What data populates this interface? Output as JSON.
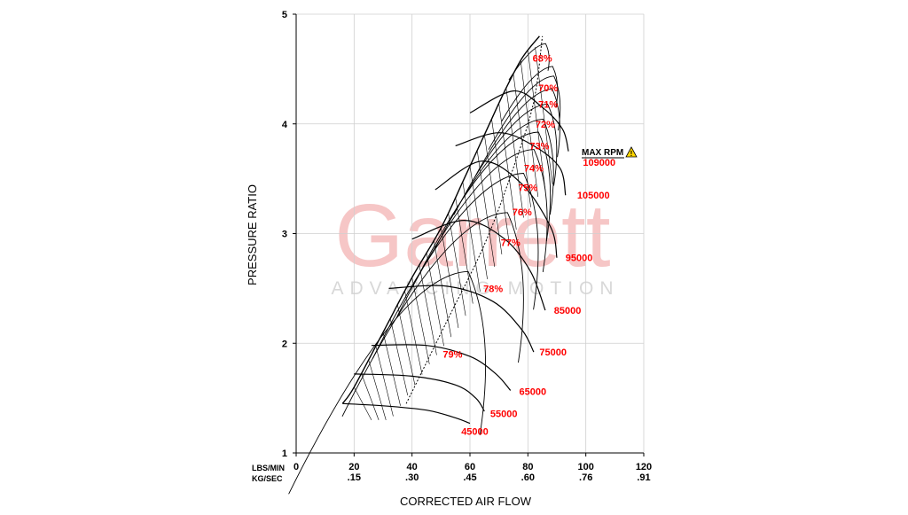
{
  "watermark": {
    "brand": "Garrett",
    "tagline": "ADVANCING MOTION"
  },
  "colors": {
    "grid": "#cfcfcf",
    "lines": "#000000",
    "labels": "#ff0000",
    "watermark": "#f6c6c6",
    "warning": "#ffd700"
  },
  "chart_data": {
    "type": "line",
    "title": "",
    "xlabel": "CORRECTED AIR FLOW",
    "ylabel": "PRESSURE RATIO",
    "xlim": [
      0,
      120
    ],
    "ylim": [
      1,
      5
    ],
    "grid": true,
    "x_unit_primary": "LBS/MIN",
    "x_unit_secondary": "KG/SEC",
    "x_ticks": [
      {
        "v": 0,
        "primary": "0",
        "secondary": ""
      },
      {
        "v": 20,
        "primary": "20",
        "secondary": ".15"
      },
      {
        "v": 40,
        "primary": "40",
        "secondary": ".30"
      },
      {
        "v": 60,
        "primary": "60",
        "secondary": ".45"
      },
      {
        "v": 80,
        "primary": "80",
        "secondary": ".60"
      },
      {
        "v": 100,
        "primary": "100",
        "secondary": ".76"
      },
      {
        "v": 120,
        "primary": "120",
        "secondary": ".91"
      }
    ],
    "y_ticks": [
      "1",
      "2",
      "3",
      "4",
      "5"
    ],
    "surge_line": [
      [
        16,
        1.45
      ],
      [
        20,
        1.6
      ],
      [
        30,
        2.1
      ],
      [
        40,
        2.6
      ],
      [
        50,
        3.05
      ],
      [
        58,
        3.5
      ],
      [
        65,
        3.9
      ],
      [
        72,
        4.3
      ],
      [
        78,
        4.6
      ],
      [
        84,
        4.8
      ]
    ],
    "speed_lines": [
      {
        "label": "45000",
        "points": [
          [
            16,
            1.45
          ],
          [
            30,
            1.43
          ],
          [
            45,
            1.39
          ],
          [
            55,
            1.32
          ],
          [
            60,
            1.27
          ]
        ],
        "label_at": [
          57,
          1.2
        ]
      },
      {
        "label": "55000",
        "points": [
          [
            20,
            1.72
          ],
          [
            40,
            1.7
          ],
          [
            55,
            1.62
          ],
          [
            62,
            1.5
          ],
          [
            65,
            1.38
          ]
        ],
        "label_at": [
          67,
          1.36
        ]
      },
      {
        "label": "65000",
        "points": [
          [
            26,
            1.98
          ],
          [
            45,
            1.98
          ],
          [
            60,
            1.88
          ],
          [
            69,
            1.72
          ],
          [
            74,
            1.57
          ]
        ],
        "label_at": [
          77,
          1.56
        ]
      },
      {
        "label": "75000",
        "points": [
          [
            32,
            2.5
          ],
          [
            52,
            2.52
          ],
          [
            68,
            2.38
          ],
          [
            78,
            2.12
          ],
          [
            82,
            1.92
          ]
        ],
        "label_at": [
          84,
          1.92
        ]
      },
      {
        "label": "85000",
        "points": [
          [
            40,
            2.95
          ],
          [
            58,
            3.12
          ],
          [
            72,
            2.95
          ],
          [
            81,
            2.65
          ],
          [
            86,
            2.3
          ]
        ],
        "label_at": [
          89,
          2.3
        ]
      },
      {
        "label": "95000",
        "points": [
          [
            48,
            3.4
          ],
          [
            64,
            3.66
          ],
          [
            78,
            3.45
          ],
          [
            88,
            3.05
          ],
          [
            90,
            2.78
          ]
        ],
        "label_at": [
          93,
          2.78
        ]
      },
      {
        "label": "105000",
        "points": [
          [
            55,
            3.8
          ],
          [
            70,
            3.92
          ],
          [
            82,
            3.8
          ],
          [
            91,
            3.6
          ],
          [
            93,
            3.35
          ]
        ],
        "label_at": [
          97,
          3.35
        ]
      },
      {
        "label": "109000",
        "points": [
          [
            60,
            4.1
          ],
          [
            75,
            4.3
          ],
          [
            85,
            4.15
          ],
          [
            92,
            3.95
          ],
          [
            94,
            3.75
          ]
        ],
        "label_at": [
          99,
          3.65
        ]
      }
    ],
    "efficiency_islands": [
      {
        "label": "68%",
        "cx": 85,
        "cy": 4.6
      },
      {
        "label": "70%",
        "cx": 87,
        "cy": 4.33
      },
      {
        "label": "71%",
        "cx": 87,
        "cy": 4.18
      },
      {
        "label": "72%",
        "cx": 86,
        "cy": 4.0
      },
      {
        "label": "73%",
        "cx": 84,
        "cy": 3.8
      },
      {
        "label": "74%",
        "cx": 82,
        "cy": 3.6
      },
      {
        "label": "75%",
        "cx": 80,
        "cy": 3.42
      },
      {
        "label": "76%",
        "cx": 78,
        "cy": 3.2
      },
      {
        "label": "77%",
        "cx": 74,
        "cy": 2.92
      },
      {
        "label": "78%",
        "cx": 68,
        "cy": 2.5
      },
      {
        "label": "79%",
        "cx": 54,
        "cy": 1.9
      }
    ],
    "max_rpm": {
      "label": "MAX RPM",
      "speed": "109000"
    }
  }
}
